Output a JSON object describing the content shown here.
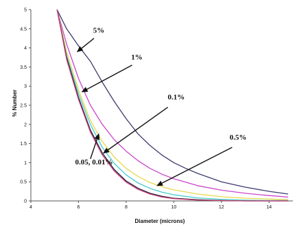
{
  "chart_data": {
    "type": "line",
    "title": "",
    "xlabel": "Diameter (microns)",
    "ylabel": "% Number",
    "xlim": [
      4,
      15
    ],
    "ylim": [
      0,
      5
    ],
    "x_ticks": [
      "4",
      "6",
      "8",
      "10",
      "12",
      "14"
    ],
    "y_ticks": [
      "0",
      "0.5",
      "1",
      "1.5",
      "2",
      "2.5",
      "3",
      "3.5",
      "4",
      "4.5",
      "5"
    ],
    "grid": false,
    "legend": "none",
    "series": [
      {
        "color": "#3a3a6e",
        "x": [
          5.1,
          5.5,
          6.0,
          6.5,
          7.0,
          7.5,
          8.0,
          8.5,
          9.0,
          9.5,
          10.0,
          10.5,
          11.0,
          12.0,
          13.0,
          14.0,
          14.8
        ],
        "y": [
          5.0,
          4.5,
          4.05,
          3.65,
          3.1,
          2.6,
          2.15,
          1.75,
          1.45,
          1.2,
          1.0,
          0.85,
          0.72,
          0.5,
          0.36,
          0.25,
          0.18
        ]
      },
      {
        "color": "#cc44cc",
        "x": [
          5.1,
          5.5,
          6.0,
          6.5,
          7.0,
          7.5,
          8.0,
          8.5,
          9.0,
          9.5,
          10.0,
          11.0,
          12.0,
          13.0,
          14.0,
          14.8
        ],
        "y": [
          5.0,
          4.1,
          3.2,
          2.5,
          2.0,
          1.6,
          1.3,
          1.05,
          0.85,
          0.7,
          0.58,
          0.4,
          0.28,
          0.2,
          0.14,
          0.1
        ]
      },
      {
        "color": "#e6d84a",
        "x": [
          5.1,
          5.5,
          6.0,
          6.5,
          7.0,
          7.5,
          8.0,
          8.5,
          9.0,
          9.5,
          10.0,
          11.0,
          12.0,
          13.0,
          14.0,
          14.8
        ],
        "y": [
          5.0,
          3.9,
          2.9,
          2.1,
          1.55,
          1.15,
          0.85,
          0.64,
          0.48,
          0.37,
          0.29,
          0.18,
          0.11,
          0.07,
          0.05,
          0.03
        ]
      },
      {
        "color": "#44cccc",
        "x": [
          5.1,
          5.5,
          6.0,
          6.5,
          7.0,
          7.5,
          8.0,
          8.5,
          9.0,
          9.5,
          10.0,
          11.0,
          12.0,
          13.0,
          14.0,
          14.8
        ],
        "y": [
          5.0,
          3.8,
          2.8,
          2.0,
          1.4,
          0.98,
          0.68,
          0.47,
          0.33,
          0.23,
          0.16,
          0.08,
          0.04,
          0.02,
          0.01,
          0.01
        ]
      },
      {
        "color": "#1a1a40",
        "x": [
          5.1,
          5.5,
          6.0,
          6.5,
          7.0,
          7.5,
          8.0,
          8.5,
          9.0,
          9.5,
          10.0,
          11.0,
          12.0,
          13.0,
          14.0,
          14.8
        ],
        "y": [
          5.0,
          3.75,
          2.7,
          1.85,
          1.25,
          0.82,
          0.52,
          0.33,
          0.2,
          0.12,
          0.07,
          0.03,
          0.01,
          0.0,
          0.0,
          0.0
        ]
      },
      {
        "color": "#d04070",
        "x": [
          5.1,
          5.5,
          6.0,
          6.5,
          7.0,
          7.5,
          8.0,
          8.5,
          9.0,
          9.5,
          10.0,
          11.0,
          12.0,
          13.0,
          14.0,
          14.8
        ],
        "y": [
          5.0,
          3.7,
          2.65,
          1.8,
          1.2,
          0.78,
          0.49,
          0.3,
          0.18,
          0.1,
          0.06,
          0.02,
          0.01,
          0.0,
          0.0,
          0.0
        ]
      }
    ],
    "annotations": [
      {
        "text": "5%",
        "x": 6.85,
        "y": 4.4,
        "arrow_from": [
          6.65,
          4.25
        ],
        "arrow_to": [
          5.95,
          3.9
        ]
      },
      {
        "text": "1%",
        "x": 8.45,
        "y": 3.7,
        "arrow_from": [
          8.25,
          3.55
        ],
        "arrow_to": [
          6.15,
          2.85
        ]
      },
      {
        "text": "0.1%",
        "x": 10.1,
        "y": 2.65,
        "arrow_from": [
          9.75,
          2.45
        ],
        "arrow_to": [
          7.05,
          1.25
        ]
      },
      {
        "text": "0.5%",
        "x": 12.7,
        "y": 1.6,
        "arrow_from": [
          12.45,
          1.4
        ],
        "arrow_to": [
          9.3,
          0.4
        ]
      },
      {
        "text": "0.05, 0.01%",
        "x": 6.65,
        "y": 0.95,
        "arrow_from": [
          6.5,
          1.1
        ],
        "arrow_to": [
          6.85,
          1.75
        ]
      }
    ]
  }
}
